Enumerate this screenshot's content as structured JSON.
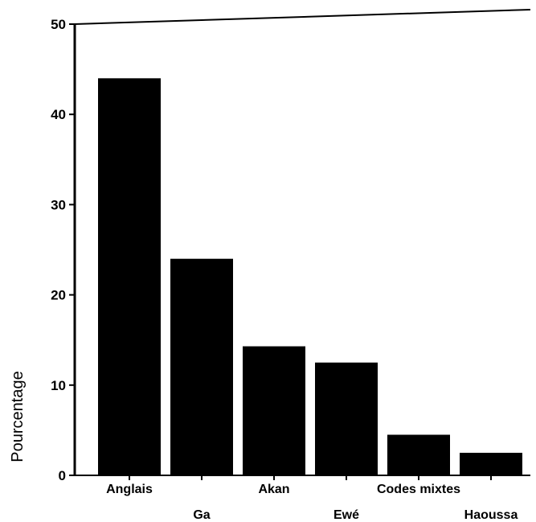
{
  "chart_data": {
    "type": "bar",
    "title": "",
    "xlabel": "",
    "ylabel": "Pourcentage",
    "categories": [
      "Anglais",
      "Ga",
      "Akan",
      "Ewé",
      "Codes mixtes",
      "Haoussa"
    ],
    "values": [
      44,
      24,
      14.3,
      12.5,
      4.5,
      2.5
    ],
    "ylim": [
      0,
      50
    ],
    "yticks": [
      0,
      10,
      20,
      30,
      40,
      50
    ],
    "grid": false,
    "legend": "none",
    "bar_color": "#000000"
  }
}
